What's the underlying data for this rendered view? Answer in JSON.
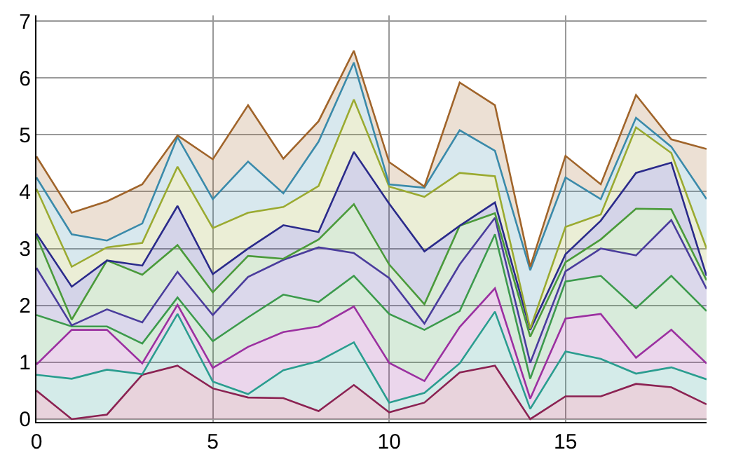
{
  "chart_data": {
    "type": "area",
    "stacked": true,
    "x": [
      0,
      1,
      2,
      3,
      4,
      5,
      6,
      7,
      8,
      9,
      10,
      11,
      12,
      13,
      14,
      15,
      16,
      17,
      18,
      19
    ],
    "xlim": [
      0,
      19
    ],
    "xticks": [
      0,
      5,
      10,
      15
    ],
    "ylim": [
      -0.05,
      7.1
    ],
    "yticks": [
      0,
      1,
      2,
      3,
      4,
      5,
      6,
      7
    ],
    "grid": true,
    "series": [
      {
        "color": "#8b2252",
        "values": [
          0.5,
          0,
          0.08,
          0.78,
          0.94,
          0.54,
          0.38,
          0.37,
          0.14,
          0.6,
          0.12,
          0.29,
          0.82,
          0.94,
          0,
          0.4,
          0.4,
          0.62,
          0.56,
          0.26
        ]
      },
      {
        "color": "#2a9d8f",
        "values": [
          0.28,
          0.71,
          0.79,
          0.01,
          0.91,
          0.12,
          0.06,
          0.49,
          0.88,
          0.75,
          0.17,
          0.17,
          0.16,
          0.95,
          0.18,
          0.79,
          0.66,
          0.18,
          0.35,
          0.44
        ]
      },
      {
        "color": "#9b30a0",
        "values": [
          0.18,
          0.86,
          0.7,
          0.19,
          0.16,
          0.24,
          0.83,
          0.67,
          0.61,
          0.63,
          0.7,
          0.21,
          0.64,
          0.41,
          0.18,
          0.58,
          0.79,
          0.28,
          0.66,
          0.28
        ]
      },
      {
        "color": "#3c9a4c",
        "values": [
          0.87,
          0.06,
          0.06,
          0.35,
          0.13,
          0.47,
          0.52,
          0.66,
          0.43,
          0.54,
          0.86,
          0.9,
          0.28,
          0.95,
          0.35,
          0.65,
          0.67,
          0.87,
          0.95,
          0.92
        ]
      },
      {
        "color": "#4a3c9c",
        "values": [
          0.83,
          0.02,
          0.3,
          0.37,
          0.45,
          0.46,
          0.71,
          0.61,
          0.96,
          0.4,
          0.63,
          0.11,
          0.82,
          0.29,
          0.28,
          0.18,
          0.48,
          0.93,
          0.98,
          0.39
        ]
      },
      {
        "color": "#4a9a3a",
        "values": [
          0.56,
          0.1,
          0.86,
          0.84,
          0.47,
          0.4,
          0.37,
          0.02,
          0.14,
          0.86,
          0.24,
          0.34,
          0.68,
          0.08,
          0.46,
          0.16,
          0.16,
          0.82,
          0.19,
          0.15
        ]
      },
      {
        "color": "#2a2a8a",
        "values": [
          0.04,
          0.58,
          0,
          0.16,
          0.69,
          0.32,
          0.13,
          0.59,
          0.13,
          0.92,
          1.07,
          0.93,
          0,
          0.19,
          0.12,
          0.14,
          0.33,
          0.63,
          0.82,
          0.08
        ]
      },
      {
        "color": "#9aaa30",
        "values": [
          0.79,
          0.35,
          0.23,
          0.4,
          0.69,
          0.81,
          0.63,
          0.32,
          0.81,
          0.92,
          0.3,
          0.96,
          0.93,
          0.46,
          0.02,
          0.48,
          0.11,
          0.8,
          0.17,
          0.48
        ]
      },
      {
        "color": "#3a8aaa",
        "values": [
          0.2,
          0.57,
          0.12,
          0.34,
          0.52,
          0.51,
          0.9,
          0.24,
          0.78,
          0.65,
          0.04,
          0.16,
          0.75,
          0.45,
          1.03,
          0.87,
          0.27,
          0.17,
          0.11,
          0.87
        ]
      },
      {
        "color": "#a0642a",
        "values": [
          0.37,
          0.38,
          0.69,
          0.69,
          0.03,
          0.7,
          0.99,
          0.61,
          0.36,
          0.21,
          0.39,
          0.02,
          0.84,
          0.8,
          0.06,
          0.38,
          0.26,
          0.4,
          0.13,
          0.88
        ]
      }
    ]
  }
}
